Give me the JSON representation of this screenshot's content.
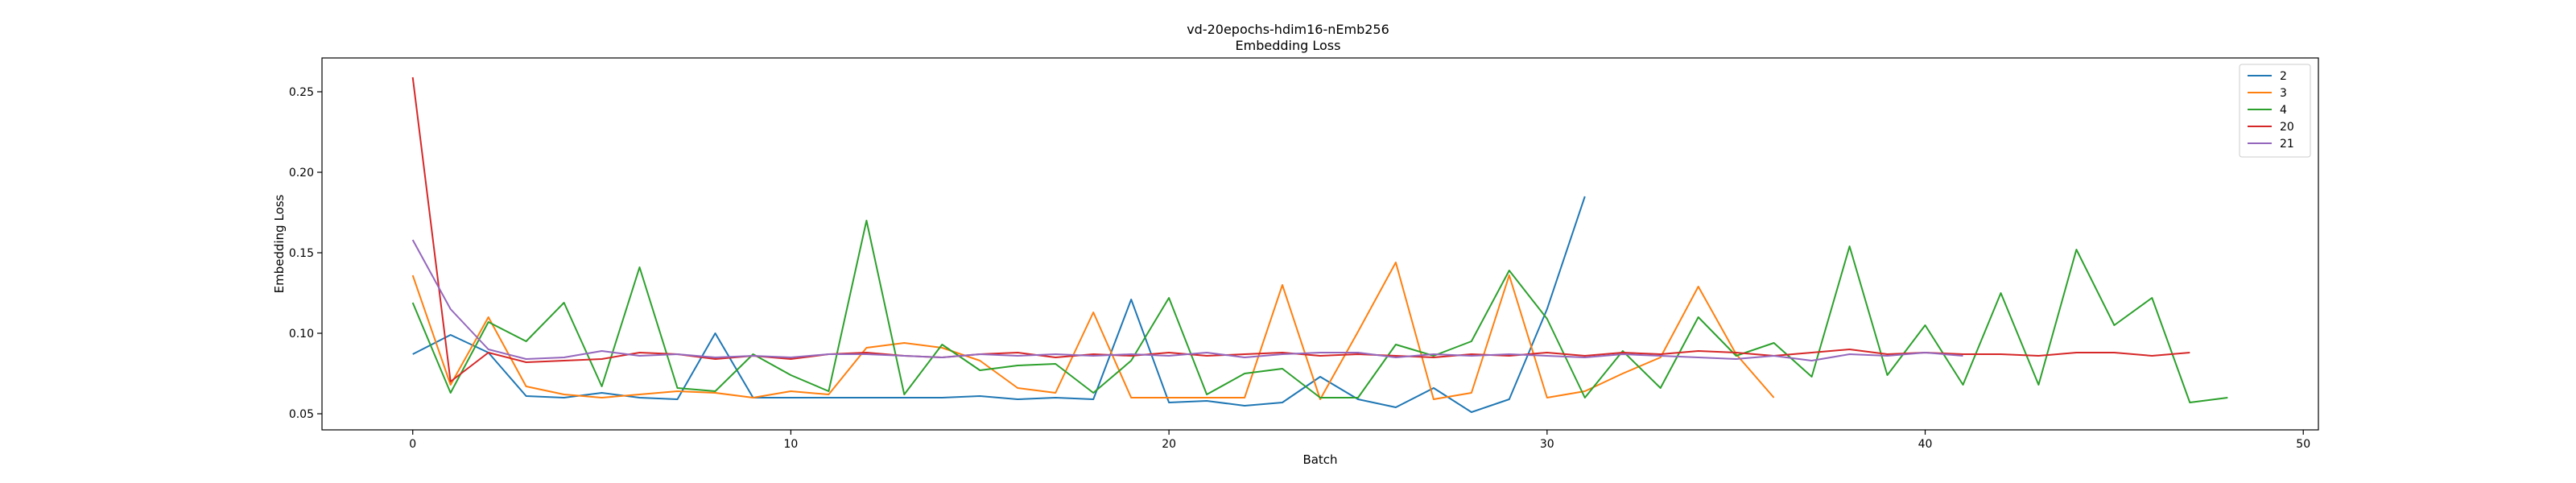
{
  "chart_data": {
    "type": "line",
    "title": "vd-20epochs-hdim16-nEmb256",
    "subtitle": "Embedding Loss",
    "xlabel": "Batch",
    "ylabel": "Embedding Loss",
    "xlim": [
      -2.4,
      50.4
    ],
    "ylim": [
      0.04,
      0.271
    ],
    "xticks": [
      0,
      10,
      20,
      30,
      40,
      50
    ],
    "yticks": [
      0.05,
      0.1,
      0.15,
      0.2,
      0.25
    ],
    "grid": false,
    "legend_position": "top-right",
    "series": [
      {
        "name": "2",
        "color": "#1f77b4",
        "values": [
          0.087,
          0.099,
          0.088,
          0.061,
          0.06,
          0.063,
          0.06,
          0.059,
          0.1,
          0.06,
          0.06,
          0.06,
          0.06,
          0.06,
          0.06,
          0.061,
          0.059,
          0.06,
          0.059,
          0.121,
          0.057,
          0.058,
          0.055,
          0.057,
          0.073,
          0.059,
          0.054,
          0.066,
          0.051,
          0.059,
          0.115,
          0.185
        ]
      },
      {
        "name": "3",
        "color": "#ff7f0e",
        "values": [
          0.136,
          0.068,
          0.11,
          0.067,
          0.062,
          0.06,
          0.062,
          0.064,
          0.063,
          0.06,
          0.064,
          0.062,
          0.091,
          0.094,
          0.091,
          0.083,
          0.066,
          0.063,
          0.113,
          0.06,
          0.06,
          0.06,
          0.06,
          0.13,
          0.059,
          0.101,
          0.144,
          0.059,
          0.063,
          0.136,
          0.06,
          0.064,
          0.075,
          0.085,
          0.129,
          0.087,
          0.06
        ]
      },
      {
        "name": "4",
        "color": "#2ca02c",
        "values": [
          0.119,
          0.063,
          0.107,
          0.095,
          0.119,
          0.067,
          0.141,
          0.066,
          0.064,
          0.087,
          0.074,
          0.064,
          0.17,
          0.062,
          0.093,
          0.077,
          0.08,
          0.081,
          0.063,
          0.083,
          0.122,
          0.062,
          0.075,
          0.078,
          0.06,
          0.06,
          0.093,
          0.086,
          0.095,
          0.139,
          0.109,
          0.06,
          0.089,
          0.066,
          0.11,
          0.086,
          0.094,
          0.073,
          0.154,
          0.074,
          0.105,
          0.068,
          0.125,
          0.068,
          0.152,
          0.105,
          0.122,
          0.057,
          0.06
        ]
      },
      {
        "name": "20",
        "color": "#d62728",
        "values": [
          0.259,
          0.07,
          0.088,
          0.082,
          0.083,
          0.084,
          0.088,
          0.087,
          0.084,
          0.086,
          0.084,
          0.087,
          0.088,
          0.086,
          0.085,
          0.087,
          0.088,
          0.085,
          0.087,
          0.086,
          0.088,
          0.086,
          0.087,
          0.088,
          0.086,
          0.087,
          0.086,
          0.085,
          0.087,
          0.086,
          0.088,
          0.086,
          0.088,
          0.087,
          0.089,
          0.088,
          0.086,
          0.088,
          0.09,
          0.087,
          0.088,
          0.087,
          0.087,
          0.086,
          0.088,
          0.088,
          0.086,
          0.088
        ]
      },
      {
        "name": "21",
        "color": "#9467bd",
        "values": [
          0.158,
          0.115,
          0.09,
          0.084,
          0.085,
          0.089,
          0.086,
          0.087,
          0.085,
          0.086,
          0.085,
          0.087,
          0.087,
          0.086,
          0.085,
          0.087,
          0.086,
          0.087,
          0.086,
          0.087,
          0.086,
          0.088,
          0.085,
          0.087,
          0.088,
          0.088,
          0.085,
          0.087,
          0.086,
          0.087,
          0.086,
          0.085,
          0.087,
          0.086,
          0.085,
          0.084,
          0.086,
          0.083,
          0.087,
          0.086,
          0.088,
          0.086
        ]
      }
    ]
  }
}
